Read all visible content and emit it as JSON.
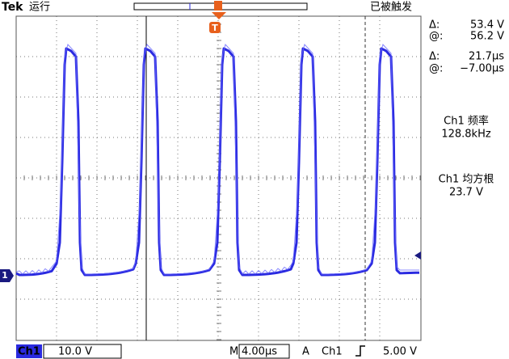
{
  "header": {
    "brand": "Tek",
    "status": "运行",
    "trigger_status": "已被触发"
  },
  "readouts": [
    {
      "label": "Δ:",
      "value": "53.4 V"
    },
    {
      "label": "@:",
      "value": "56.2 V"
    },
    {
      "label": "Δ:",
      "value": "21.7µs"
    },
    {
      "label": "@:",
      "value": "−7.00µs"
    }
  ],
  "measurements": [
    {
      "label": "Ch1 频率",
      "value": "128.8kHz"
    },
    {
      "label": "Ch1 均方根",
      "value": "23.7 V"
    }
  ],
  "markers": {
    "channel": "1",
    "trigger": "T"
  },
  "footer": {
    "channel": "Ch1",
    "scale": "10.0 V",
    "timebase_label": "M",
    "timebase": "4.00µs",
    "trigger_mode": "A",
    "trigger_source": "Ch1",
    "trigger_level": "5.00 V"
  }
}
